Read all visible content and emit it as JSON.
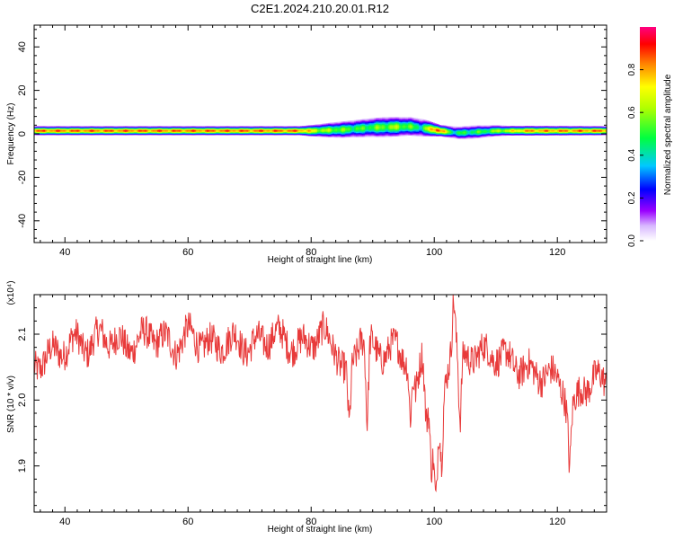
{
  "title": "C2E1.2024.210.20.01.R12",
  "chart_data": [
    {
      "type": "heatmap",
      "xlabel": "Height of straight line (km)",
      "ylabel": "Frequency (Hz)",
      "xlim": [
        35,
        128
      ],
      "ylim": [
        -50,
        50
      ],
      "x_ticks": [
        40,
        60,
        80,
        100,
        120
      ],
      "y_ticks": [
        -40,
        -20,
        0,
        20,
        40
      ],
      "band": {
        "center_freq": [
          [
            35,
            1.5
          ],
          [
            80,
            1.5
          ],
          [
            85,
            2.0
          ],
          [
            90,
            3.0
          ],
          [
            96,
            3.5
          ],
          [
            99,
            2.5
          ],
          [
            101,
            1.5
          ],
          [
            104,
            0.5
          ],
          [
            110,
            1.5
          ],
          [
            128,
            1.5
          ]
        ],
        "half_width_hz": [
          [
            35,
            2.0
          ],
          [
            78,
            2.0
          ],
          [
            84,
            3.5
          ],
          [
            92,
            4.5
          ],
          [
            98,
            4.0
          ],
          [
            101,
            2.5
          ],
          [
            106,
            3.0
          ],
          [
            112,
            2.2
          ],
          [
            128,
            2.0
          ]
        ],
        "peak_amplitude": [
          [
            35,
            0.85
          ],
          [
            78,
            0.85
          ],
          [
            82,
            0.6
          ],
          [
            88,
            0.5
          ],
          [
            94,
            0.6
          ],
          [
            98,
            0.45
          ],
          [
            100.5,
            0.95
          ],
          [
            103,
            0.45
          ],
          [
            108,
            0.5
          ],
          [
            115,
            0.8
          ],
          [
            128,
            0.85
          ]
        ]
      },
      "colorbar": {
        "label": "Normalized spectral amplitude",
        "range": [
          0,
          1
        ],
        "ticks": [
          "0.0",
          "0.2",
          "0.4",
          "0.6",
          "0.8"
        ],
        "colors": [
          "#ffffff",
          "#9a00ff",
          "#0000ff",
          "#00e0ff",
          "#00ff00",
          "#ffff00",
          "#ff0000",
          "#ff0080"
        ]
      }
    },
    {
      "type": "line",
      "xlabel": "Height of straight line (km)",
      "ylabel": "SNR (10 * v/v)",
      "y_multiplier": "(x10⁴)",
      "xlim": [
        35,
        128
      ],
      "ylim": [
        1.83,
        2.16
      ],
      "x_ticks": [
        40,
        60,
        80,
        100,
        120
      ],
      "y_ticks": [
        "1.9",
        "2.0",
        "2.1"
      ],
      "color": "#e83a3a",
      "x": [
        35,
        36,
        38,
        40,
        42,
        44,
        46,
        48,
        50,
        52,
        54,
        56,
        58,
        60,
        62,
        64,
        66,
        68,
        70,
        72,
        74,
        76,
        78,
        80,
        82,
        84,
        85,
        86,
        88,
        90,
        92,
        94,
        96,
        97,
        98,
        99,
        100,
        101,
        102,
        103,
        104,
        106,
        108,
        110,
        112,
        114,
        116,
        118,
        120,
        121,
        122,
        124,
        126,
        128
      ],
      "y": [
        2.05,
        2.06,
        2.07,
        2.08,
        2.09,
        2.08,
        2.1,
        2.09,
        2.08,
        2.09,
        2.1,
        2.09,
        2.08,
        2.1,
        2.09,
        2.08,
        2.09,
        2.09,
        2.08,
        2.09,
        2.1,
        2.09,
        2.08,
        2.09,
        2.1,
        2.08,
        2.05,
        2.03,
        2.1,
        2.08,
        2.07,
        2.08,
        2.06,
        2.0,
        2.07,
        2.02,
        1.92,
        1.97,
        2.04,
        2.1,
        2.06,
        2.07,
        2.07,
        2.07,
        2.06,
        2.05,
        2.04,
        2.04,
        2.03,
        2.02,
        1.97,
        2.02,
        2.03,
        2.03
      ],
      "spikes": [
        {
          "x": 86.2,
          "y": 1.955
        },
        {
          "x": 89.1,
          "y": 1.96
        },
        {
          "x": 96.1,
          "y": 1.975
        },
        {
          "x": 98.7,
          "y": 1.98
        },
        {
          "x": 99.5,
          "y": 1.905
        },
        {
          "x": 100.3,
          "y": 1.842
        },
        {
          "x": 101.2,
          "y": 1.9
        },
        {
          "x": 103.2,
          "y": 2.155
        },
        {
          "x": 104.2,
          "y": 1.96
        },
        {
          "x": 122.0,
          "y": 1.9
        }
      ]
    }
  ]
}
